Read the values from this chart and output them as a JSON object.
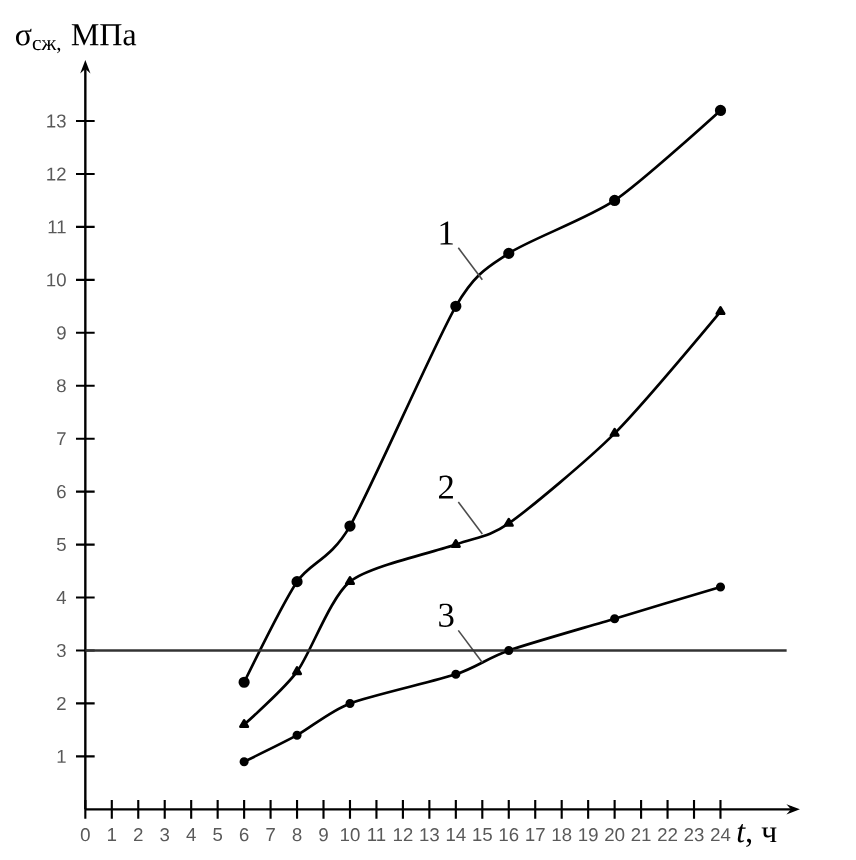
{
  "chart_data": {
    "type": "line",
    "xlabel": "*t*, ч",
    "ylabel": "σ$_{сж,}$ МПа",
    "x": [
      6,
      8,
      10,
      14,
      16,
      20,
      24
    ],
    "series": [
      {
        "name": "1",
        "color": "#000000",
        "marker": "circle",
        "values": [
          2.4,
          4.3,
          5.35,
          9.5,
          10.5,
          11.5,
          13.2
        ]
      },
      {
        "name": "2",
        "color": "#000000",
        "marker": "triangle",
        "values": [
          1.6,
          2.6,
          4.3,
          5.0,
          5.4,
          7.1,
          9.4
        ]
      },
      {
        "name": "3",
        "color": "#000000",
        "marker": "circle",
        "values": [
          0.9,
          1.4,
          2.0,
          2.55,
          3.0,
          3.6,
          4.2
        ]
      }
    ],
    "xlim": [
      0,
      26.5
    ],
    "ylim": [
      0,
      13.9
    ],
    "xticks": [
      0,
      1,
      2,
      3,
      4,
      5,
      6,
      7,
      8,
      9,
      10,
      11,
      12,
      13,
      14,
      15,
      16,
      17,
      18,
      19,
      20,
      21,
      22,
      23,
      24
    ],
    "yticks": [
      1,
      2,
      3,
      4,
      5,
      6,
      7,
      8,
      9,
      10,
      11,
      12,
      13
    ],
    "ref_lines": [
      {
        "axis": "y",
        "value": 3,
        "color": "#333333"
      }
    ],
    "grid": false,
    "line_style": "solid"
  }
}
